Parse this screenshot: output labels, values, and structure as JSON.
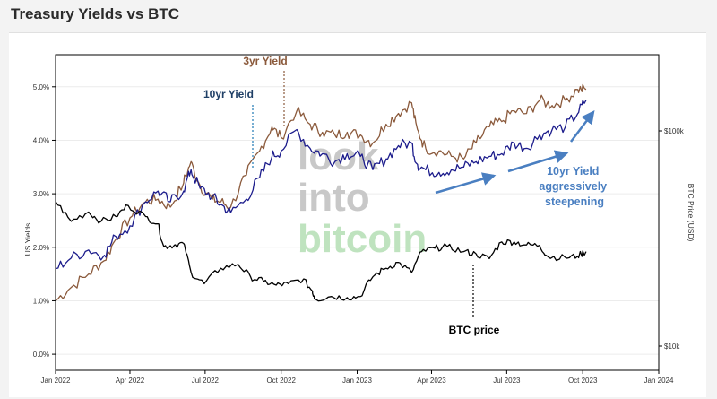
{
  "page": {
    "title": "Treasury Yields vs BTC"
  },
  "chart_data": {
    "type": "line",
    "x_ticks": [
      "Jan 2022",
      "Apr 2022",
      "Jul 2022",
      "Oct 2022",
      "Jan 2023",
      "Apr 2023",
      "Jul 2023",
      "Oct 2023",
      "Jan 2024"
    ],
    "xlim": [
      "2022-01-01",
      "2024-01-01"
    ],
    "y_left": {
      "label": "US Yields",
      "ticks": [
        "0.0%",
        "1.0%",
        "2.0%",
        "3.0%",
        "4.0%",
        "5.0%"
      ],
      "ylim": [
        -0.3,
        5.6
      ]
    },
    "y_right": {
      "label": "BTC Price (USD)",
      "scale": "log",
      "ticks": [
        "$10k",
        "$100k"
      ]
    },
    "series": [
      {
        "name": "3yr Yield",
        "color": "#8b5a3c",
        "axis": "left",
        "x": [
          "2022-01-01",
          "2022-01-20",
          "2022-02-10",
          "2022-03-01",
          "2022-03-15",
          "2022-04-01",
          "2022-04-20",
          "2022-05-05",
          "2022-05-20",
          "2022-06-05",
          "2022-06-14",
          "2022-06-25",
          "2022-07-10",
          "2022-07-20",
          "2022-08-01",
          "2022-08-20",
          "2022-09-05",
          "2022-09-20",
          "2022-10-01",
          "2022-10-20",
          "2022-11-05",
          "2022-11-20",
          "2022-12-05",
          "2022-12-20",
          "2023-01-05",
          "2023-01-20",
          "2023-02-05",
          "2023-02-20",
          "2023-03-08",
          "2023-03-15",
          "2023-03-25",
          "2023-04-10",
          "2023-04-25",
          "2023-05-10",
          "2023-05-25",
          "2023-06-10",
          "2023-06-25",
          "2023-07-10",
          "2023-07-25",
          "2023-08-10",
          "2023-08-25",
          "2023-09-10",
          "2023-09-25",
          "2023-10-05"
        ],
        "y": [
          1.0,
          1.25,
          1.5,
          1.75,
          2.15,
          2.55,
          2.85,
          2.9,
          2.75,
          3.2,
          3.6,
          3.15,
          2.9,
          2.85,
          2.75,
          3.35,
          3.8,
          4.25,
          4.05,
          4.55,
          4.3,
          4.15,
          4.1,
          4.15,
          4.1,
          3.95,
          4.3,
          4.5,
          4.7,
          4.2,
          3.85,
          3.8,
          3.7,
          3.65,
          3.95,
          4.25,
          4.35,
          4.55,
          4.5,
          4.75,
          4.65,
          4.75,
          4.95,
          4.95
        ]
      },
      {
        "name": "10yr Yield",
        "color": "#1c1c8c",
        "axis": "left",
        "x": [
          "2022-01-01",
          "2022-01-20",
          "2022-02-10",
          "2022-03-01",
          "2022-03-15",
          "2022-04-01",
          "2022-04-20",
          "2022-05-05",
          "2022-05-20",
          "2022-06-05",
          "2022-06-14",
          "2022-06-25",
          "2022-07-10",
          "2022-07-20",
          "2022-08-01",
          "2022-08-20",
          "2022-09-05",
          "2022-09-20",
          "2022-10-01",
          "2022-10-20",
          "2022-11-05",
          "2022-11-20",
          "2022-12-05",
          "2022-12-20",
          "2023-01-05",
          "2023-01-20",
          "2023-02-05",
          "2023-02-20",
          "2023-03-08",
          "2023-03-15",
          "2023-03-25",
          "2023-04-10",
          "2023-04-25",
          "2023-05-10",
          "2023-05-25",
          "2023-06-10",
          "2023-06-25",
          "2023-07-10",
          "2023-07-25",
          "2023-08-10",
          "2023-08-25",
          "2023-09-10",
          "2023-09-25",
          "2023-10-05"
        ],
        "y": [
          1.6,
          1.8,
          1.95,
          1.85,
          2.2,
          2.4,
          2.85,
          3.05,
          2.85,
          3.05,
          3.45,
          3.1,
          2.95,
          2.8,
          2.65,
          2.9,
          3.3,
          3.7,
          3.8,
          4.2,
          3.85,
          3.75,
          3.6,
          3.75,
          3.7,
          3.45,
          3.65,
          3.9,
          3.95,
          3.55,
          3.45,
          3.4,
          3.45,
          3.5,
          3.6,
          3.7,
          3.75,
          3.95,
          3.85,
          4.1,
          4.2,
          4.25,
          4.5,
          4.75
        ]
      },
      {
        "name": "BTC price",
        "color": "#000000",
        "axis": "right",
        "x": [
          "2022-01-01",
          "2022-01-20",
          "2022-02-10",
          "2022-02-25",
          "2022-03-15",
          "2022-03-30",
          "2022-04-20",
          "2022-05-05",
          "2022-05-12",
          "2022-05-25",
          "2022-06-05",
          "2022-06-14",
          "2022-06-30",
          "2022-07-20",
          "2022-08-10",
          "2022-08-25",
          "2022-09-10",
          "2022-09-25",
          "2022-10-10",
          "2022-10-28",
          "2022-11-08",
          "2022-11-12",
          "2022-12-01",
          "2022-12-20",
          "2023-01-05",
          "2023-01-20",
          "2023-02-05",
          "2023-02-20",
          "2023-03-08",
          "2023-03-20",
          "2023-04-05",
          "2023-04-20",
          "2023-05-10",
          "2023-05-25",
          "2023-06-10",
          "2023-06-25",
          "2023-07-10",
          "2023-07-25",
          "2023-08-10",
          "2023-08-20",
          "2023-09-10",
          "2023-09-25",
          "2023-10-05"
        ],
        "y": [
          47000,
          38000,
          42000,
          38000,
          40000,
          45000,
          40000,
          37000,
          29000,
          29500,
          30000,
          22000,
          19500,
          23000,
          24000,
          21000,
          20000,
          19200,
          19500,
          20500,
          18000,
          16500,
          17000,
          16800,
          17000,
          21000,
          23000,
          24500,
          22000,
          27500,
          28500,
          29000,
          27500,
          26800,
          25500,
          30500,
          30500,
          29500,
          29400,
          26000,
          25800,
          26200,
          27500
        ]
      }
    ],
    "annotations": [
      "3yr Yield",
      "10yr Yield",
      "BTC price",
      "10yr Yield aggressively steepening"
    ],
    "watermark": [
      "look",
      "into",
      "bitcoin"
    ]
  }
}
